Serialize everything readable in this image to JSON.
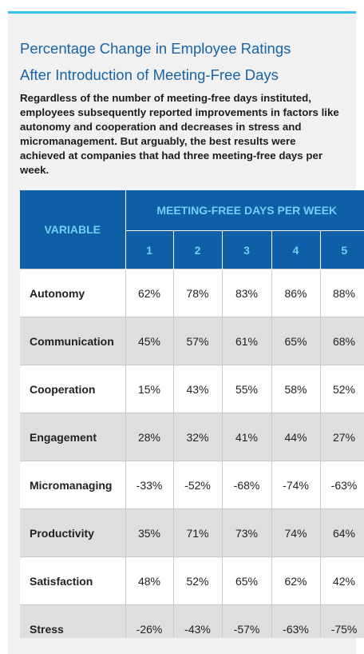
{
  "header": {
    "title_lines": [
      "Percentage Change in Employee Ratings",
      "After Introduction of Meeting-Free Days"
    ],
    "description": "Regardless of the number of meeting-free days instituted, employees subsequently reported improvements in factors like autonomy and cooperation and decreases in stress and micromanagement. But arguably, the best results were achieved at companies that had three meeting-free days per week."
  },
  "table": {
    "variable_header": "VARIABLE",
    "group_header": "MEETING-FREE DAYS PER WEEK",
    "columns": [
      "1",
      "2",
      "3",
      "4",
      "5"
    ],
    "rows": [
      [
        "Autonomy",
        "62%",
        "78%",
        "83%",
        "86%",
        "88%"
      ],
      [
        "Communication",
        "45%",
        "57%",
        "61%",
        "65%",
        "68%"
      ],
      [
        "Cooperation",
        "15%",
        "43%",
        "55%",
        "58%",
        "52%"
      ],
      [
        "Engagement",
        "28%",
        "32%",
        "41%",
        "44%",
        "27%"
      ],
      [
        "Micromanaging",
        "-33%",
        "-52%",
        "-68%",
        "-74%",
        "-63%"
      ],
      [
        "Productivity",
        "35%",
        "71%",
        "73%",
        "74%",
        "64%"
      ],
      [
        "Satisfaction",
        "48%",
        "52%",
        "65%",
        "62%",
        "42%"
      ],
      [
        "Stress",
        "-26%",
        "-43%",
        "-57%",
        "-63%",
        "-75%"
      ]
    ]
  }
}
